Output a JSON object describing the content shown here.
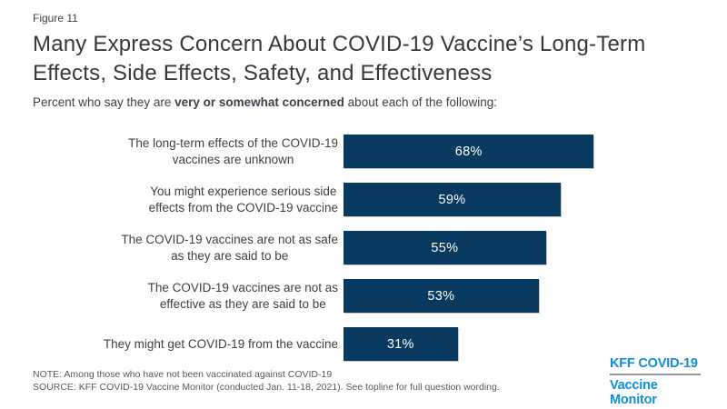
{
  "figure_label": "Figure 11",
  "title": "Many Express Concern About COVID-19 Vaccine’s Long-Term\nEffects, Side Effects, Safety, and Effectiveness",
  "subtitle": {
    "prefix": "Percent who say they are ",
    "bold": "very or somewhat concerned",
    "suffix": " about each of the following:"
  },
  "chart_data": {
    "type": "bar",
    "orientation": "horizontal",
    "title": "Many Express Concern About COVID-19 Vaccine’s Long-Term Effects, Side Effects, Safety, and Effectiveness",
    "categories": [
      "The long-term effects of the COVID-19 vaccines are unknown",
      "You might experience serious side effects from the COVID-19 vaccine",
      "The COVID-19 vaccines are not as safe as they are said to be",
      "The COVID-19 vaccines are not as effective as they are said to be",
      "They might get COVID-19 from the vaccine"
    ],
    "display_labels": [
      "The long-term effects of the COVID-19\nvaccines are unknown",
      "You might experience serious side\neffects from the COVID-19 vaccine",
      "The COVID-19 vaccines are not as safe\nas they are said to be",
      "The COVID-19 vaccines are not as\neffective as they are said to be",
      "They might get COVID-19 from the vaccine"
    ],
    "values": [
      68,
      59,
      55,
      53,
      31
    ],
    "value_labels": [
      "68%",
      "59%",
      "55%",
      "53%",
      "31%"
    ],
    "xlabel": "",
    "ylabel": "",
    "xlim": [
      0,
      100
    ],
    "grid": false,
    "legend": false,
    "bar_color": "#08395e",
    "value_label_color": "#ffffff"
  },
  "notes": {
    "note": "NOTE: Among those who have not been vaccinated against COVID-19",
    "source": "SOURCE: KFF COVID-19 Vaccine Monitor (conducted Jan. 11-18, 2021). See topline for full question wording."
  },
  "logo": {
    "line1": "KFF COVID-19",
    "line2": "Vaccine Monitor",
    "color": "#0e8fd8"
  },
  "colors": {
    "bar": "#08395e",
    "title_text": "#383838",
    "body_text": "#404040",
    "note_text": "#58595b",
    "logo_blue": "#0e8fd8",
    "logo_divider": "#97989a",
    "background": "#ffffff"
  }
}
